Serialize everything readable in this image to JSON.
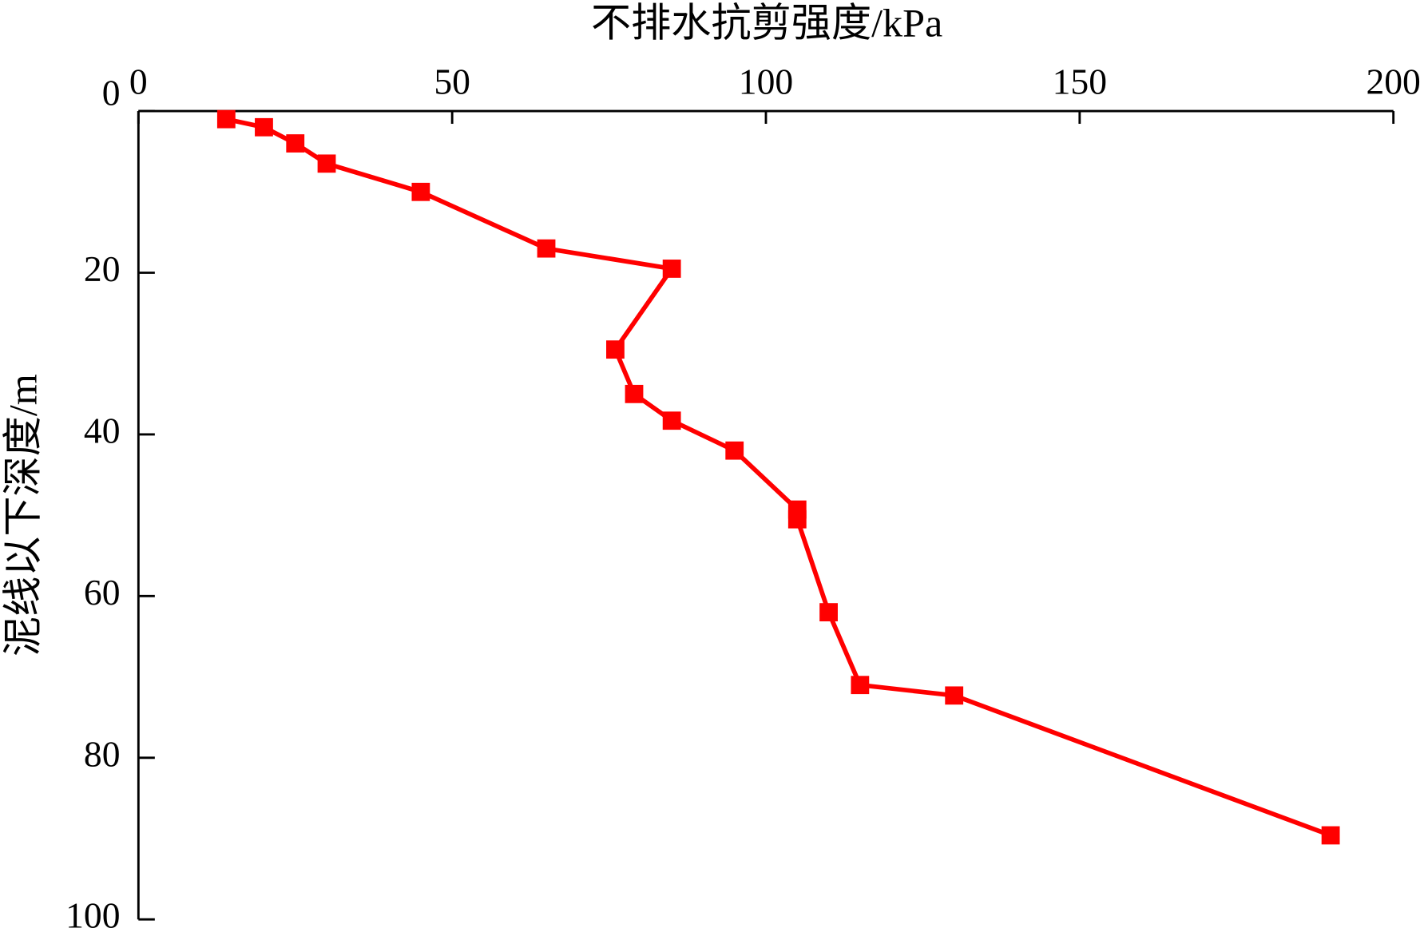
{
  "chart_data": {
    "type": "line",
    "x_label": "不排水抗剪强度/kPa",
    "y_label": "泥线以下深度/m",
    "x": [
      14,
      20,
      25,
      30,
      45,
      65,
      85,
      76,
      79,
      85,
      95,
      105,
      105,
      110,
      115,
      130,
      190
    ],
    "series": [
      {
        "color": "#ff0000",
        "values": [
          1,
          2,
          4,
          6.5,
          10,
          17,
          19.5,
          29.5,
          35,
          38.3,
          42,
          49.3,
          50.5,
          62,
          71,
          72.3,
          89.6
        ]
      }
    ],
    "xlim": [
      0,
      200
    ],
    "xticks": [
      0,
      50,
      100,
      150,
      200
    ],
    "ylim": [
      0,
      100
    ],
    "yticks": [
      0,
      20,
      40,
      60,
      80,
      100
    ],
    "y_inverted": true,
    "x_axis_position": "top",
    "marker": "square"
  }
}
